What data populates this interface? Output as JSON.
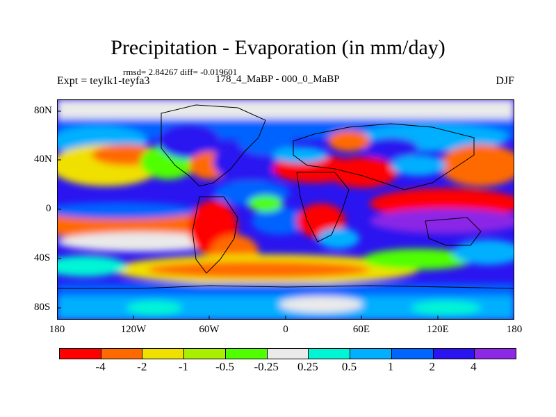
{
  "title": "Precipitation - Evaporation (in mm/day)",
  "stats": "rmsd= 2.84267 diff= -0.019601",
  "experiment": "Expt = teyIk1-teyfa3",
  "period": "178_4_MaBP - 000_0_MaBP",
  "season": "DJF",
  "map": {
    "y_axis_labels": [
      "80N",
      "40N",
      "0",
      "40S",
      "80S"
    ],
    "x_axis_labels": [
      "180",
      "120W",
      "60W",
      "0",
      "60E",
      "120E",
      "180"
    ]
  },
  "colorbar": {
    "colors": [
      "#ff0000",
      "#ff6a00",
      "#f0e000",
      "#a8f000",
      "#50ff00",
      "#eaeaea",
      "#00f5d5",
      "#00b0ff",
      "#0064ff",
      "#2a14f0",
      "#8c28e6"
    ],
    "labels": [
      "-4",
      "-2",
      "-1",
      "-0.5",
      "-0.25",
      "0.25",
      "0.5",
      "1",
      "2",
      "4"
    ]
  }
}
